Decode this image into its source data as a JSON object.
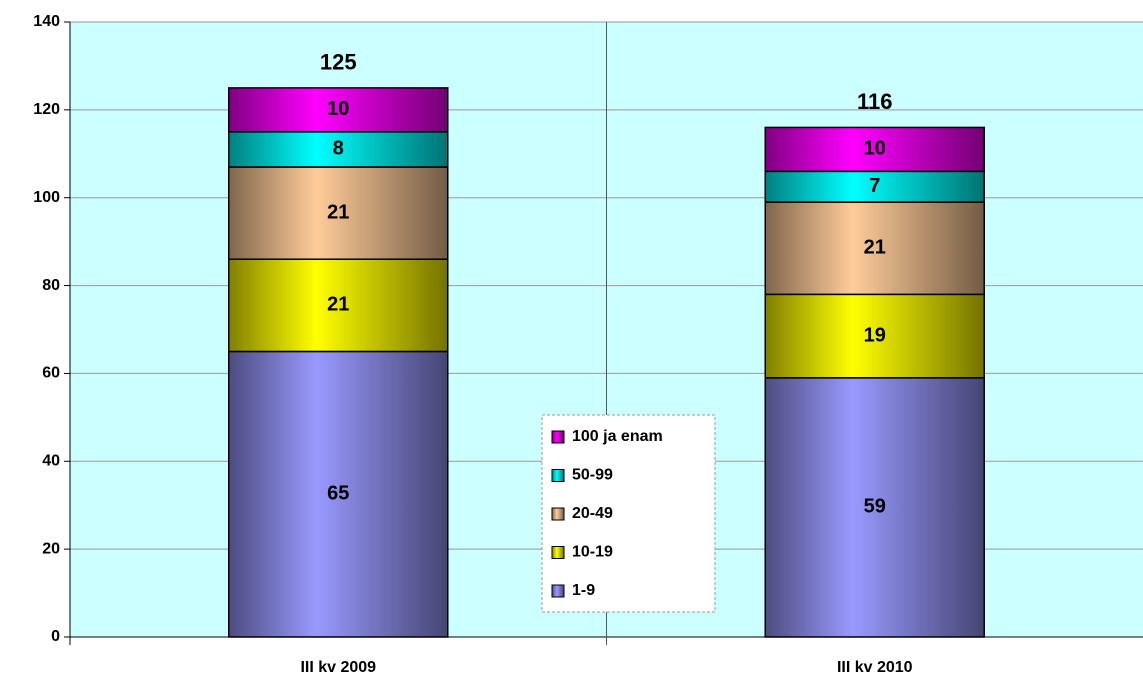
{
  "chart_data": {
    "type": "stacked_bar",
    "categories": [
      "III kv 2009",
      "III kv 2010"
    ],
    "series": [
      {
        "name": "1-9",
        "color": "#9999ff",
        "values": [
          65,
          59
        ]
      },
      {
        "name": "10-19",
        "color": "#ffff00",
        "values": [
          21,
          19
        ]
      },
      {
        "name": "20-49",
        "color": "#ffcc99",
        "values": [
          21,
          21
        ]
      },
      {
        "name": "50-99",
        "color": "#00ffff",
        "values": [
          8,
          7
        ]
      },
      {
        "name": "100 ja enam",
        "color": "#ff00ff",
        "values": [
          10,
          10
        ]
      }
    ],
    "totals": [
      125,
      116
    ],
    "ylim": [
      0,
      140
    ],
    "yticks": [
      0,
      20,
      40,
      60,
      80,
      100,
      120,
      140
    ],
    "grid": true,
    "background": "#ccffff"
  }
}
